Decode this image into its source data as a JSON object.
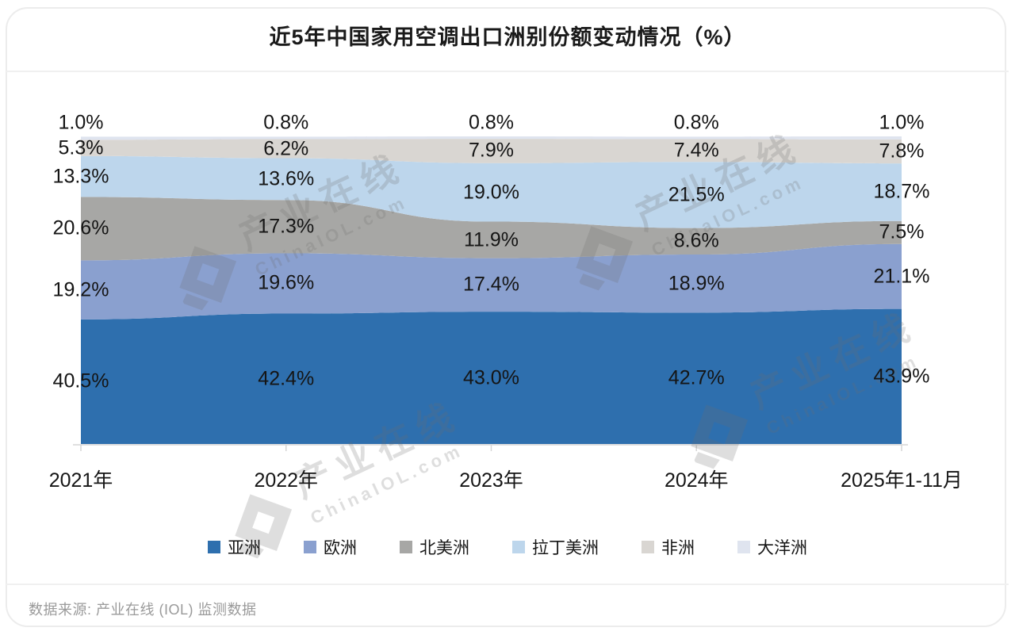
{
  "title": "近5年中国家用空调出口洲别份额变动情况（%）",
  "footer": {
    "source": "数据来源: 产业在线 (IOL) 监测数据"
  },
  "watermark": {
    "name": "产业在线",
    "domain": "ChinaIOL.com"
  },
  "chart_data": {
    "type": "area",
    "stacked": true,
    "unit": "%",
    "title": "近5年中国家用空调出口洲别份额变动情况（%）",
    "categories": [
      "2021年",
      "2022年",
      "2023年",
      "2024年",
      "2025年1-11月"
    ],
    "series": [
      {
        "name": "亚洲",
        "color": "#2e6fae",
        "values": [
          40.5,
          42.4,
          43.0,
          42.7,
          43.9
        ]
      },
      {
        "name": "欧洲",
        "color": "#8aa0cf",
        "values": [
          19.2,
          19.6,
          17.4,
          18.9,
          21.1
        ]
      },
      {
        "name": "北美洲",
        "color": "#a7a7a5",
        "values": [
          20.6,
          17.3,
          11.9,
          8.6,
          7.5
        ]
      },
      {
        "name": "拉丁美洲",
        "color": "#bdd6ec",
        "values": [
          13.3,
          13.6,
          19.0,
          21.5,
          18.7
        ]
      },
      {
        "name": "非洲",
        "color": "#d9d6d2",
        "values": [
          5.3,
          6.2,
          7.9,
          7.4,
          7.8
        ]
      },
      {
        "name": "大洋洲",
        "color": "#dfe4ef",
        "values": [
          1.0,
          0.8,
          0.8,
          0.8,
          1.0
        ]
      }
    ],
    "legend_position": "bottom",
    "grid": false,
    "ylim": [
      0,
      100
    ],
    "axis_color": "#d6d6d6"
  }
}
